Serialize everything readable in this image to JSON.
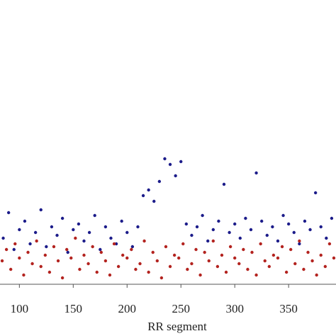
{
  "chart_data": {
    "type": "scatter",
    "x_label": "RR segment",
    "xlim": [
      82,
      394
    ],
    "ylim": [
      0,
      10
    ],
    "xticks": [
      100,
      150,
      200,
      250,
      300,
      350
    ],
    "series": [
      {
        "color": "#1c1c8a",
        "x": [
          85,
          90,
          95,
          100,
          105,
          110,
          115,
          120,
          125,
          130,
          135,
          140,
          145,
          150,
          155,
          160,
          165,
          170,
          175,
          180,
          185,
          190,
          195,
          200,
          205,
          210,
          215,
          220,
          225,
          230,
          235,
          240,
          245,
          250,
          255,
          260,
          265,
          270,
          275,
          280,
          285,
          290,
          295,
          300,
          305,
          310,
          315,
          320,
          325,
          330,
          335,
          340,
          345,
          350,
          355,
          360,
          365,
          370,
          375,
          380,
          385,
          390
        ],
        "values": [
          1.6,
          2.5,
          1.2,
          1.9,
          2.2,
          1.4,
          1.8,
          2.6,
          1.3,
          2.0,
          1.7,
          2.3,
          1.1,
          1.9,
          2.1,
          1.5,
          1.8,
          2.4,
          1.2,
          2.0,
          1.6,
          1.4,
          2.2,
          1.8,
          1.3,
          2.0,
          3.1,
          3.3,
          2.9,
          3.6,
          4.4,
          4.2,
          3.8,
          4.3,
          2.1,
          1.7,
          2.0,
          2.4,
          1.5,
          1.9,
          2.2,
          3.5,
          1.8,
          2.1,
          1.6,
          2.3,
          1.9,
          3.9,
          2.2,
          1.7,
          2.0,
          1.5,
          2.4,
          2.1,
          1.8,
          1.4,
          2.2,
          1.9,
          3.2,
          2.0,
          1.6,
          2.3
        ]
      },
      {
        "color": "#b3231f",
        "x": [
          84,
          88,
          92,
          96,
          100,
          104,
          108,
          112,
          116,
          120,
          124,
          128,
          132,
          136,
          140,
          144,
          148,
          152,
          156,
          160,
          164,
          168,
          172,
          176,
          180,
          184,
          188,
          192,
          196,
          200,
          204,
          208,
          212,
          216,
          220,
          224,
          228,
          232,
          236,
          240,
          244,
          248,
          252,
          256,
          260,
          264,
          268,
          272,
          276,
          280,
          284,
          288,
          292,
          296,
          300,
          304,
          308,
          312,
          316,
          320,
          324,
          328,
          332,
          336,
          340,
          344,
          348,
          352,
          356,
          360,
          364,
          368,
          372,
          376,
          380,
          384,
          388,
          392
        ],
        "values": [
          0.8,
          1.2,
          0.5,
          1.4,
          0.9,
          0.3,
          1.1,
          0.7,
          1.5,
          0.6,
          1.0,
          0.4,
          1.3,
          0.8,
          0.2,
          1.2,
          0.9,
          1.6,
          0.5,
          1.0,
          0.7,
          1.3,
          0.4,
          1.1,
          0.8,
          0.3,
          1.4,
          0.6,
          1.0,
          0.9,
          1.2,
          0.5,
          0.7,
          1.5,
          0.4,
          1.1,
          0.8,
          0.2,
          1.3,
          0.6,
          1.0,
          0.9,
          1.4,
          0.5,
          0.7,
          1.2,
          0.3,
          1.1,
          0.8,
          1.5,
          0.6,
          1.0,
          0.4,
          1.3,
          0.9,
          0.7,
          1.2,
          0.5,
          1.1,
          0.3,
          1.4,
          0.8,
          0.6,
          1.0,
          0.9,
          1.3,
          0.4,
          1.2,
          0.7,
          1.5,
          0.5,
          1.1,
          0.8,
          0.3,
          1.0,
          0.6,
          1.4,
          0.9
        ]
      }
    ]
  }
}
